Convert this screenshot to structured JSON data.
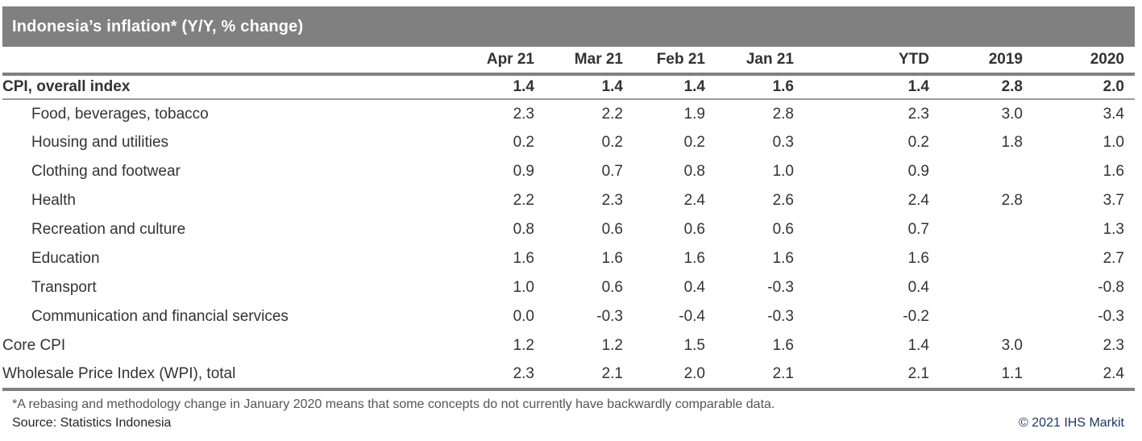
{
  "header": {
    "title": "Indonesia’s inflation* (Y/Y, % change)"
  },
  "chart_data": {
    "type": "table",
    "title": "Indonesia’s inflation* (Y/Y, % change)",
    "columns": [
      "Apr 21",
      "Mar 21",
      "Feb 21",
      "Jan 21",
      "YTD",
      "2019",
      "2020"
    ],
    "rows": [
      {
        "label": "CPI, overall index",
        "style": "total",
        "indent": false,
        "values": [
          "1.4",
          "1.4",
          "1.4",
          "1.6",
          "1.4",
          "2.8",
          "2.0"
        ]
      },
      {
        "label": "Food, beverages, tobacco",
        "style": "sub",
        "indent": true,
        "values": [
          "2.3",
          "2.2",
          "1.9",
          "2.8",
          "2.3",
          "3.0",
          "3.4"
        ]
      },
      {
        "label": "Housing and utilities",
        "style": "sub",
        "indent": true,
        "values": [
          "0.2",
          "0.2",
          "0.2",
          "0.3",
          "0.2",
          "1.8",
          "1.0"
        ]
      },
      {
        "label": "Clothing and footwear",
        "style": "sub",
        "indent": true,
        "values": [
          "0.9",
          "0.7",
          "0.8",
          "1.0",
          "0.9",
          "",
          "1.6"
        ]
      },
      {
        "label": "Health",
        "style": "sub",
        "indent": true,
        "values": [
          "2.2",
          "2.3",
          "2.4",
          "2.6",
          "2.4",
          "2.8",
          "3.7"
        ]
      },
      {
        "label": "Recreation and culture",
        "style": "sub",
        "indent": true,
        "values": [
          "0.8",
          "0.6",
          "0.6",
          "0.6",
          "0.7",
          "",
          "1.3"
        ]
      },
      {
        "label": "Education",
        "style": "sub",
        "indent": true,
        "values": [
          "1.6",
          "1.6",
          "1.6",
          "1.6",
          "1.6",
          "",
          "2.7"
        ]
      },
      {
        "label": "Transport",
        "style": "sub",
        "indent": true,
        "values": [
          "1.0",
          "0.6",
          "0.4",
          "-0.3",
          "0.4",
          "",
          "-0.8"
        ]
      },
      {
        "label": "Communication and financial services",
        "style": "sub",
        "indent": true,
        "values": [
          "0.0",
          "-0.3",
          "-0.4",
          "-0.3",
          "-0.2",
          "",
          "-0.3"
        ]
      },
      {
        "label": "Core CPI",
        "style": "plain",
        "indent": false,
        "values": [
          "1.2",
          "1.2",
          "1.5",
          "1.6",
          "1.4",
          "3.0",
          "2.3"
        ]
      },
      {
        "label": "Wholesale Price Index (WPI), total",
        "style": "plain",
        "indent": false,
        "values": [
          "2.3",
          "2.1",
          "2.0",
          "2.1",
          "2.1",
          "1.1",
          "2.4"
        ]
      }
    ],
    "layout": {
      "grid": "off",
      "header_rule": "thick-gray",
      "bottom_rule": "thick-gray"
    }
  },
  "footer": {
    "footnote": "*A rebasing and methodology change in January 2020 means that some concepts do not currently have backwardly comparable data.",
    "source": "Source: Statistics Indonesia",
    "copyright": "© 2021 IHS Markit"
  },
  "colors": {
    "title_bar_bg": "#808080",
    "title_text": "#ffffff",
    "rule_gray": "#808080",
    "thin_rule_gray": "#9a9a9a",
    "table_text": "#333333",
    "footnote_text": "#555555",
    "copyright_blue": "#1f3864"
  }
}
